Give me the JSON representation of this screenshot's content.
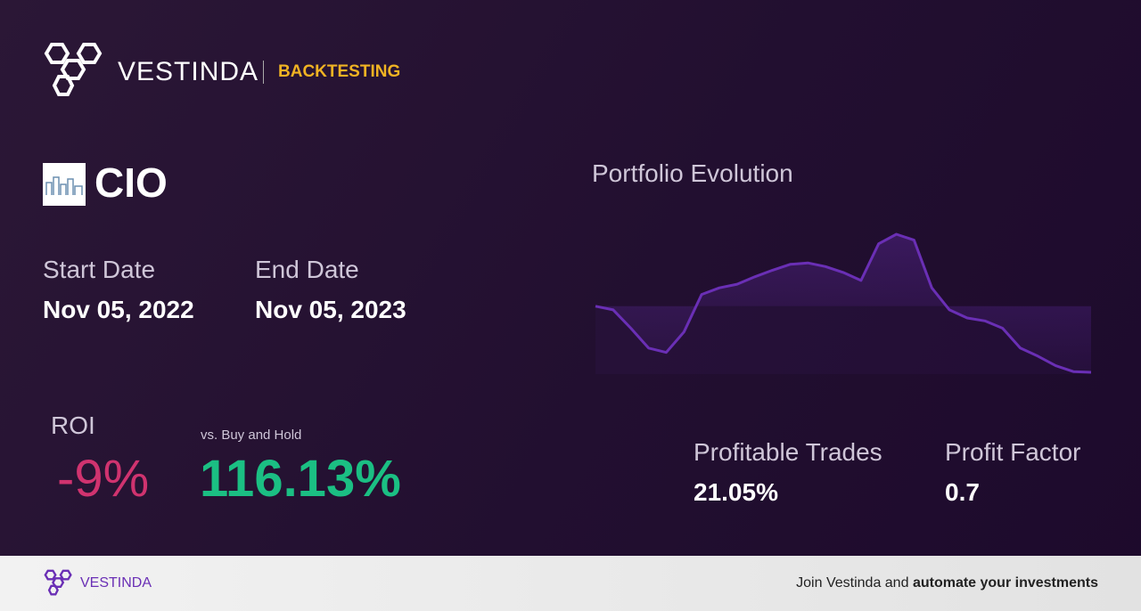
{
  "header": {
    "brand": "VESTINDA",
    "section": "BACKTESTING"
  },
  "ticker": "CIO",
  "start_date": {
    "label": "Start Date",
    "value": "Nov 05, 2022"
  },
  "end_date": {
    "label": "End Date",
    "value": "Nov 05, 2023"
  },
  "roi": {
    "label": "ROI",
    "value": "-9%"
  },
  "buy_hold": {
    "label": "vs. Buy and Hold",
    "value": "116.13%"
  },
  "profitable_trades": {
    "label": "Profitable Trades",
    "value": "21.05%"
  },
  "profit_factor": {
    "label": "Profit Factor",
    "value": "0.7"
  },
  "chart_data": {
    "type": "line",
    "title": "Portfolio Evolution",
    "color": "#6a2fb5",
    "values": [
      100,
      99.5,
      97,
      94.3,
      93.7,
      96.5,
      101.6,
      102.5,
      103,
      104,
      104.9,
      105.7,
      105.9,
      105.4,
      104.6,
      103.5,
      108.5,
      109.8,
      109,
      102.5,
      99.5,
      98.4,
      98,
      97,
      94.3,
      93.2,
      91.9,
      91.1,
      91
    ]
  },
  "footer": {
    "brand": "VESTINDA",
    "text_prefix": "Join Vestinda and",
    "text_bold": "automate your investments"
  }
}
